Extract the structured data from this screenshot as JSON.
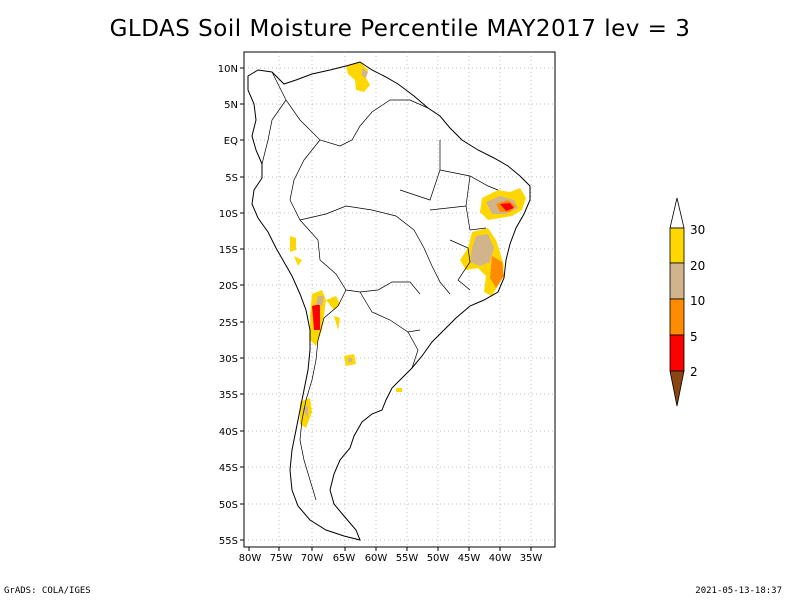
{
  "title": "GLDAS Soil Moisture Percentile MAY2017 lev = 3",
  "footer": {
    "left": "GrADS: COLA/IGES",
    "right": "2021-05-13-18:37"
  },
  "map": {
    "lon_labels": [
      "80W",
      "75W",
      "70W",
      "65W",
      "60W",
      "55W",
      "50W",
      "45W",
      "40W",
      "35W"
    ],
    "lat_labels": [
      "10N",
      "5N",
      "EQ",
      "5S",
      "10S",
      "15S",
      "20S",
      "25S",
      "30S",
      "35S",
      "40S",
      "45S",
      "50S",
      "55S"
    ],
    "lon_range": [
      -81,
      -33
    ],
    "lat_range": [
      -56,
      12
    ]
  },
  "colorbar": {
    "labels": [
      "30",
      "20",
      "10",
      "5",
      "2"
    ],
    "colors": {
      "above30": "#ffffff",
      "20_30": "#ffd700",
      "10_20": "#d2b48c",
      "5_10": "#ff8c00",
      "2_5": "#ff0000",
      "below2": "#8b4513"
    }
  }
}
